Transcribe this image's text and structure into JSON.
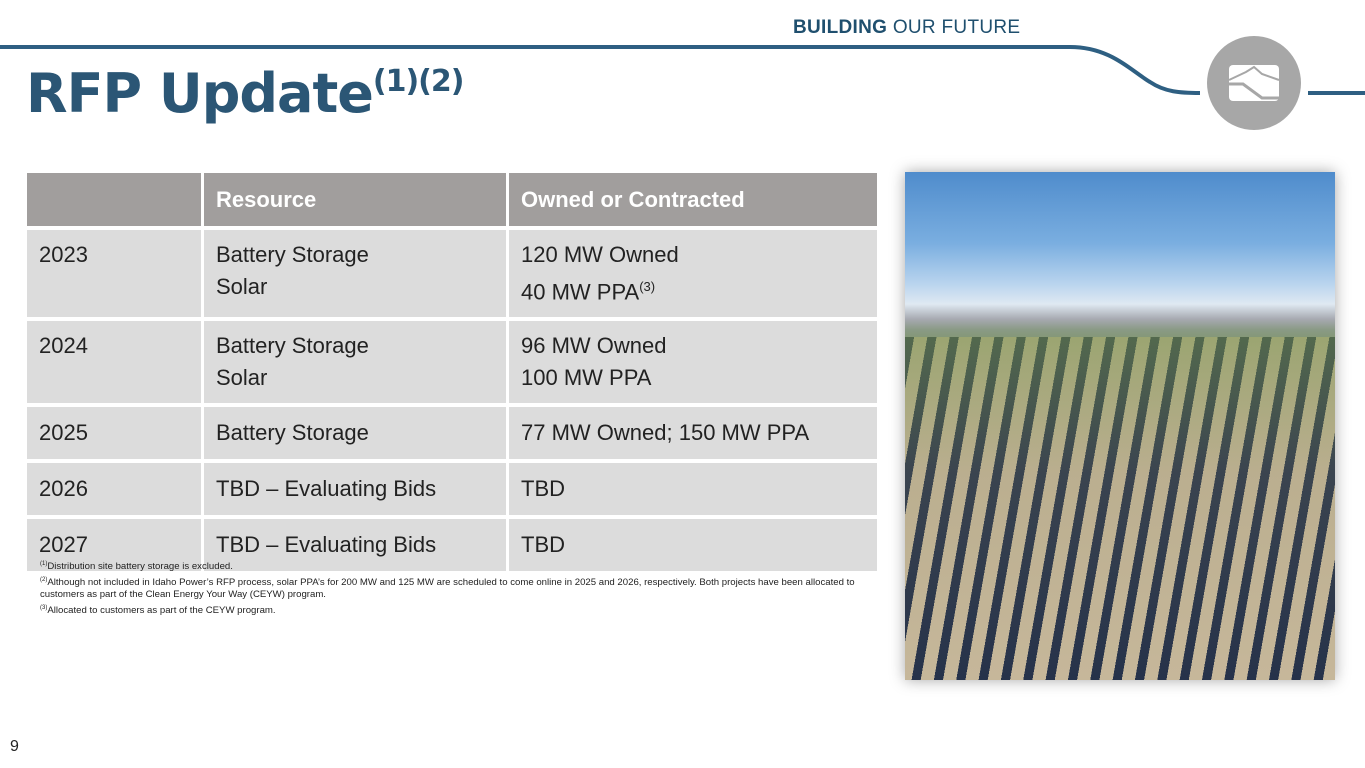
{
  "header": {
    "brand_bold": "BUILDING",
    "brand_light": "OUR FUTURE",
    "accent": "#2e5f82",
    "logo": "mountain-logo-icon"
  },
  "title": {
    "text": "RFP Update",
    "sup": "(1)(2)"
  },
  "table": {
    "columns": [
      "",
      "Resource",
      "Owned or Contracted"
    ],
    "rows": [
      {
        "year": "2023",
        "resource": [
          "Battery Storage",
          "Solar"
        ],
        "owned": [
          "120 MW Owned",
          "40 MW PPA"
        ],
        "owned_sup": "(3)"
      },
      {
        "year": "2024",
        "resource": [
          "Battery Storage",
          "Solar"
        ],
        "owned": [
          "96 MW Owned",
          "100 MW PPA"
        ]
      },
      {
        "year": "2025",
        "resource": [
          "Battery Storage"
        ],
        "owned": [
          "77 MW Owned; 150 MW PPA"
        ]
      },
      {
        "year": "2026",
        "resource": [
          "TBD – Evaluating Bids"
        ],
        "owned": [
          "TBD"
        ]
      },
      {
        "year": "2027",
        "resource": [
          "TBD – Evaluating Bids"
        ],
        "owned": [
          "TBD"
        ]
      }
    ]
  },
  "notes": [
    {
      "sup": "(1)",
      "text": "Distribution site battery storage is excluded."
    },
    {
      "sup": "(2)",
      "text": "Although not included in Idaho Power’s RFP process, solar PPA’s for 200 MW and 125 MW are scheduled to come online in 2025 and 2026, respectively. Both projects have been allocated to customers as part of the Clean Energy Your Way (CEYW) program."
    },
    {
      "sup": "(3)",
      "text": "Allocated to customers as part of the CEYW program."
    }
  ],
  "page_number": "9"
}
